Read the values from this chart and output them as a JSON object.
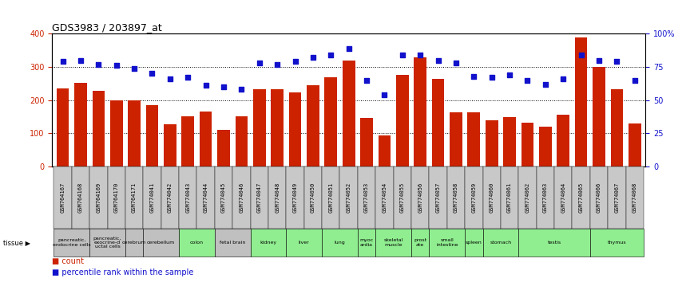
{
  "title": "GDS3983 / 203897_at",
  "gsm_labels": [
    "GSM764167",
    "GSM764168",
    "GSM764169",
    "GSM764170",
    "GSM764171",
    "GSM774041",
    "GSM774042",
    "GSM774043",
    "GSM774044",
    "GSM774045",
    "GSM774046",
    "GSM774047",
    "GSM774048",
    "GSM774049",
    "GSM774050",
    "GSM774051",
    "GSM774052",
    "GSM774053",
    "GSM774054",
    "GSM774055",
    "GSM774056",
    "GSM774057",
    "GSM774058",
    "GSM774059",
    "GSM774060",
    "GSM774061",
    "GSM774062",
    "GSM774063",
    "GSM774064",
    "GSM774065",
    "GSM774066",
    "GSM774067",
    "GSM774068"
  ],
  "counts": [
    235,
    252,
    228,
    200,
    200,
    185,
    128,
    152,
    166,
    110,
    152,
    232,
    232,
    223,
    246,
    268,
    320,
    147,
    93,
    277,
    330,
    265,
    162,
    162,
    138,
    148,
    133,
    120,
    155,
    390,
    300,
    232,
    130
  ],
  "percentiles": [
    79,
    80,
    77,
    76,
    74,
    70,
    66,
    67,
    61,
    60,
    58,
    78,
    77,
    79,
    82,
    84,
    89,
    65,
    54,
    84,
    84,
    80,
    78,
    68,
    67,
    69,
    65,
    62,
    66,
    84,
    80,
    79,
    65
  ],
  "tissue_defs": [
    {
      "name": "pancreatic,\nendocrine cells",
      "bars": [
        0,
        1
      ],
      "color": "#c0c0c0"
    },
    {
      "name": "pancreatic,\nexocrine-d\nuctal cells",
      "bars": [
        2,
        3
      ],
      "color": "#c0c0c0"
    },
    {
      "name": "cerebrum",
      "bars": [
        4
      ],
      "color": "#c0c0c0"
    },
    {
      "name": "cerebellum",
      "bars": [
        5,
        6
      ],
      "color": "#c0c0c0"
    },
    {
      "name": "colon",
      "bars": [
        7,
        8
      ],
      "color": "#90ee90"
    },
    {
      "name": "fetal brain",
      "bars": [
        9,
        10
      ],
      "color": "#c0c0c0"
    },
    {
      "name": "kidney",
      "bars": [
        11,
        12
      ],
      "color": "#90ee90"
    },
    {
      "name": "liver",
      "bars": [
        13,
        14
      ],
      "color": "#90ee90"
    },
    {
      "name": "lung",
      "bars": [
        15,
        16
      ],
      "color": "#90ee90"
    },
    {
      "name": "myoc\nardia",
      "bars": [
        17
      ],
      "color": "#90ee90"
    },
    {
      "name": "skeletal\nmuscle",
      "bars": [
        18,
        19
      ],
      "color": "#90ee90"
    },
    {
      "name": "prost\nate",
      "bars": [
        20
      ],
      "color": "#90ee90"
    },
    {
      "name": "small\nintestine",
      "bars": [
        21,
        22
      ],
      "color": "#90ee90"
    },
    {
      "name": "spleen",
      "bars": [
        23
      ],
      "color": "#90ee90"
    },
    {
      "name": "stomach",
      "bars": [
        24,
        25
      ],
      "color": "#90ee90"
    },
    {
      "name": "testis",
      "bars": [
        26,
        27,
        28,
        29
      ],
      "color": "#90ee90"
    },
    {
      "name": "thymus",
      "bars": [
        30,
        31,
        32
      ],
      "color": "#90ee90"
    }
  ],
  "bar_color": "#cc2200",
  "dot_color": "#1111cc",
  "ylim_left": [
    0,
    400
  ],
  "ylim_right": [
    0,
    100
  ],
  "yticks_left": [
    0,
    100,
    200,
    300,
    400
  ],
  "yticks_right": [
    0,
    25,
    50,
    75,
    100
  ],
  "yticklabels_right": [
    "0",
    "25",
    "50",
    "75",
    "100%"
  ],
  "bg_color": "#ffffff"
}
